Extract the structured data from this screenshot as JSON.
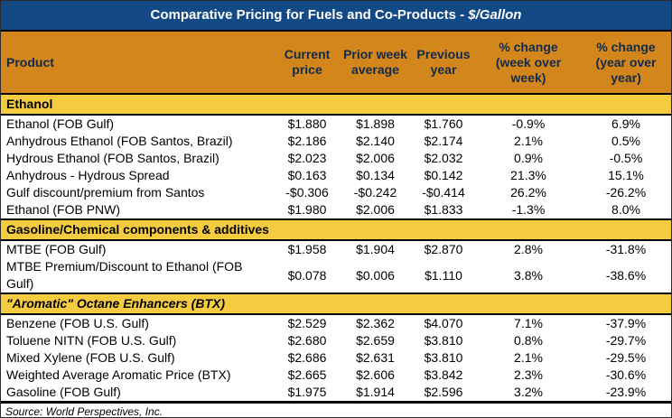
{
  "source": "Source: World Perspectives, Inc.",
  "colors": {
    "title_bg": "#134A86",
    "title_text": "#FFFFFF",
    "header_bg": "#D2861B",
    "header_text": "#122A4C",
    "section_bg": "#F5CC3F",
    "border": "#000000"
  },
  "chart_data": {
    "type": "table",
    "title_main": "Comparative Pricing for Fuels and Co-Products - ",
    "title_unit": "$/Gallon",
    "columns": [
      "Product",
      "Current price",
      "Prior week average",
      "Previous year",
      "% change (week over week)",
      "% change (year over year)"
    ],
    "sections": [
      {
        "label": "Ethanol",
        "italic": false,
        "rows": [
          [
            "Ethanol (FOB Gulf)",
            "$1.880",
            "$1.898",
            "$1.760",
            "-0.9%",
            "6.9%"
          ],
          [
            "Anhydrous Ethanol (FOB Santos, Brazil)",
            "$2.186",
            "$2.140",
            "$2.174",
            "2.1%",
            "0.5%"
          ],
          [
            "Hydrous Ethanol (FOB Santos, Brazil)",
            "$2.023",
            "$2.006",
            "$2.032",
            "0.9%",
            "-0.5%"
          ],
          [
            "Anhydrous - Hydrous Spread",
            "$0.163",
            "$0.134",
            "$0.142",
            "21.3%",
            "15.1%"
          ],
          [
            "Gulf discount/premium from Santos",
            "-$0.306",
            "-$0.242",
            "-$0.414",
            "26.2%",
            "-26.2%"
          ],
          [
            "Ethanol (FOB PNW)",
            "$1.980",
            "$2.006",
            "$1.833",
            "-1.3%",
            "8.0%"
          ]
        ]
      },
      {
        "label": "Gasoline/Chemical components & additives",
        "italic": false,
        "rows": [
          [
            "MTBE (FOB Gulf)",
            "$1.958",
            "$1.904",
            "$2.870",
            "2.8%",
            "-31.8%"
          ],
          [
            "MTBE Premium/Discount to Ethanol (FOB Gulf)",
            "$0.078",
            "$0.006",
            "$1.110",
            "3.8%",
            "-38.6%"
          ]
        ]
      },
      {
        "label": "\"Aromatic\" Octane Enhancers (BTX)",
        "italic": true,
        "rows": [
          [
            "Benzene (FOB U.S. Gulf)",
            "$2.529",
            "$2.362",
            "$4.070",
            "7.1%",
            "-37.9%"
          ],
          [
            "Toluene NITN (FOB U.S. Gulf)",
            "$2.680",
            "$2.659",
            "$3.810",
            "0.8%",
            "-29.7%"
          ],
          [
            "Mixed Xylene (FOB U.S. Gulf)",
            "$2.686",
            "$2.631",
            "$3.810",
            "2.1%",
            "-29.5%"
          ],
          [
            "Weighted Average Aromatic Price (BTX)",
            "$2.665",
            "$2.606",
            "$3.842",
            "2.3%",
            "-30.6%"
          ],
          [
            "Gasoline (FOB Gulf)",
            "$1.975",
            "$1.914",
            "$2.596",
            "3.2%",
            "-23.9%"
          ]
        ]
      }
    ]
  }
}
